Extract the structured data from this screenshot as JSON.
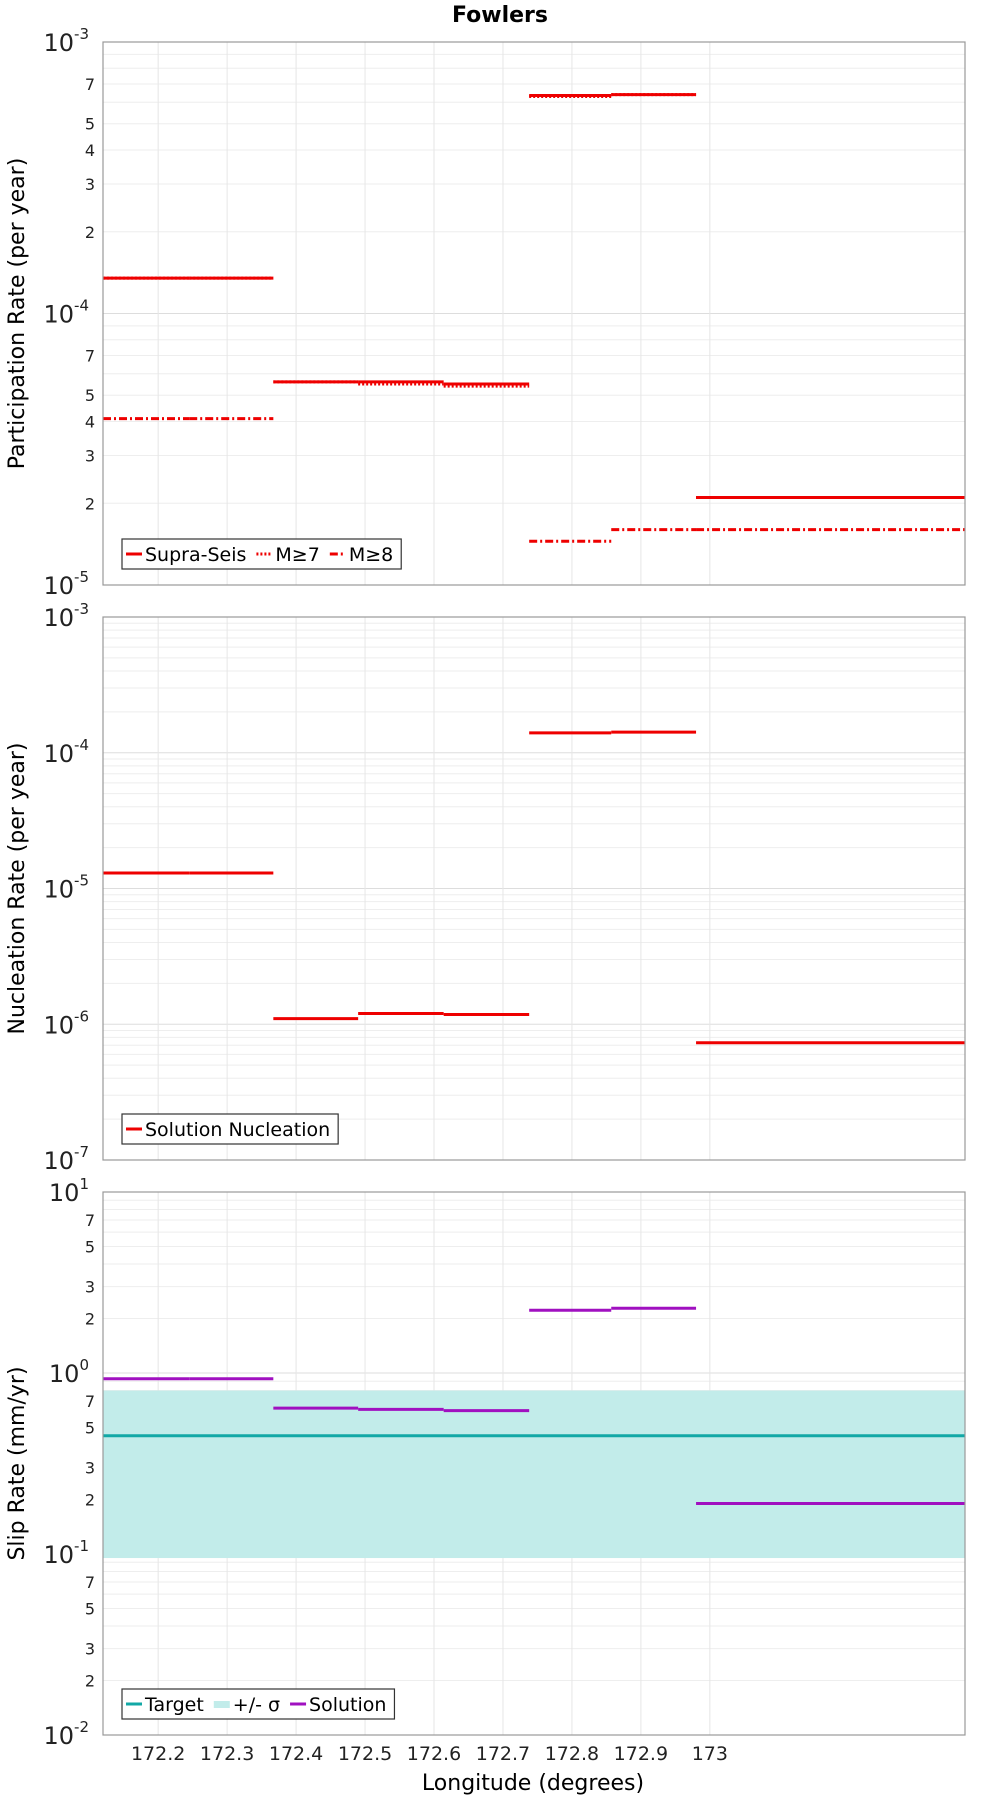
{
  "chart_data": {
    "title": "Fowlers",
    "xlabel": "Longitude (degrees)",
    "xlim": [
      172.12,
      173.37
    ],
    "xticks": [
      172.2,
      172.3,
      172.4,
      172.5,
      172.6,
      172.7,
      172.8,
      172.9,
      173
    ],
    "xtick_labels": [
      "172.2",
      "172.3",
      "172.4",
      "172.5",
      "172.6",
      "172.7",
      "172.8",
      "172.9",
      "173"
    ],
    "grid": true,
    "panels": [
      {
        "type": "line",
        "ylabel": "Participation Rate (per year)",
        "yscale": "log",
        "ylim": [
          1e-05,
          0.001
        ],
        "major_ticks": [
          {
            "value": 1e-05,
            "base": "10",
            "exp": "-5"
          },
          {
            "value": 0.0001,
            "base": "10",
            "exp": "-4"
          },
          {
            "value": 0.001,
            "base": "10",
            "exp": "-3"
          }
        ],
        "minor_labels": [
          "2",
          "3",
          "4",
          "5",
          "7"
        ],
        "legend": {
          "placement": "bottom-left",
          "entries": [
            {
              "label": "Supra-Seis",
              "color": "#ee0000",
              "style": "solid"
            },
            {
              "label": "M≥7",
              "color": "#ee0000",
              "style": "dotted"
            },
            {
              "label": "M≥8",
              "color": "#ee0000",
              "style": "dashdot"
            }
          ]
        },
        "series": [
          {
            "name": "Supra-Seis",
            "color": "#ee0000",
            "style": "solid",
            "segments": [
              {
                "x0": 172.12,
                "x1": 172.245,
                "y": 0.000135
              },
              {
                "x0": 172.245,
                "x1": 172.367,
                "y": 0.000135
              },
              {
                "x0": 172.367,
                "x1": 172.49,
                "y": 5.6e-05
              },
              {
                "x0": 172.49,
                "x1": 172.614,
                "y": 5.6e-05
              },
              {
                "x0": 172.614,
                "x1": 172.738,
                "y": 5.5e-05
              },
              {
                "x0": 172.738,
                "x1": 172.857,
                "y": 0.000635
              },
              {
                "x0": 172.857,
                "x1": 172.98,
                "y": 0.00064
              },
              {
                "x0": 172.98,
                "x1": 173.37,
                "y": 2.1e-05
              }
            ]
          },
          {
            "name": "M≥7",
            "color": "#ee0000",
            "style": "dotted",
            "segments": [
              {
                "x0": 172.12,
                "x1": 172.245,
                "y": 0.000135
              },
              {
                "x0": 172.245,
                "x1": 172.367,
                "y": 0.000135
              },
              {
                "x0": 172.367,
                "x1": 172.49,
                "y": 5.6e-05
              },
              {
                "x0": 172.49,
                "x1": 172.614,
                "y": 5.5e-05
              },
              {
                "x0": 172.614,
                "x1": 172.738,
                "y": 5.4e-05
              },
              {
                "x0": 172.738,
                "x1": 172.857,
                "y": 0.00063
              },
              {
                "x0": 172.857,
                "x1": 172.98,
                "y": 0.00064
              },
              {
                "x0": 172.98,
                "x1": 173.37,
                "y": 2.1e-05
              }
            ]
          },
          {
            "name": "M≥8",
            "color": "#ee0000",
            "style": "dashdot",
            "segments": [
              {
                "x0": 172.12,
                "x1": 172.245,
                "y": 4.1e-05
              },
              {
                "x0": 172.245,
                "x1": 172.367,
                "y": 4.1e-05
              },
              {
                "x0": 172.738,
                "x1": 172.857,
                "y": 1.45e-05
              },
              {
                "x0": 172.857,
                "x1": 172.98,
                "y": 1.6e-05
              },
              {
                "x0": 172.98,
                "x1": 173.37,
                "y": 1.6e-05
              }
            ]
          }
        ]
      },
      {
        "type": "line",
        "ylabel": "Nucleation Rate (per year)",
        "yscale": "log",
        "ylim": [
          1e-07,
          0.001
        ],
        "major_ticks": [
          {
            "value": 1e-07,
            "base": "10",
            "exp": "-7"
          },
          {
            "value": 1e-06,
            "base": "10",
            "exp": "-6"
          },
          {
            "value": 1e-05,
            "base": "10",
            "exp": "-5"
          },
          {
            "value": 0.0001,
            "base": "10",
            "exp": "-4"
          },
          {
            "value": 0.001,
            "base": "10",
            "exp": "-3"
          }
        ],
        "minor_labels": [],
        "legend": {
          "placement": "bottom-left",
          "entries": [
            {
              "label": "Solution Nucleation",
              "color": "#ee0000",
              "style": "solid"
            }
          ]
        },
        "series": [
          {
            "name": "Solution Nucleation",
            "color": "#ee0000",
            "style": "solid",
            "segments": [
              {
                "x0": 172.12,
                "x1": 172.245,
                "y": 1.3e-05
              },
              {
                "x0": 172.245,
                "x1": 172.367,
                "y": 1.3e-05
              },
              {
                "x0": 172.367,
                "x1": 172.49,
                "y": 1.1e-06
              },
              {
                "x0": 172.49,
                "x1": 172.614,
                "y": 1.2e-06
              },
              {
                "x0": 172.614,
                "x1": 172.738,
                "y": 1.18e-06
              },
              {
                "x0": 172.738,
                "x1": 172.857,
                "y": 0.00014
              },
              {
                "x0": 172.857,
                "x1": 172.98,
                "y": 0.000142
              },
              {
                "x0": 172.98,
                "x1": 173.37,
                "y": 7.3e-07
              }
            ]
          }
        ]
      },
      {
        "type": "line",
        "ylabel": "Slip Rate (mm/yr)",
        "yscale": "log",
        "ylim": [
          0.01,
          10
        ],
        "major_ticks": [
          {
            "value": 0.01,
            "base": "10",
            "exp": "-2"
          },
          {
            "value": 0.1,
            "base": "10",
            "exp": "-1"
          },
          {
            "value": 1,
            "base": "10",
            "exp": "0"
          },
          {
            "value": 10,
            "base": "10",
            "exp": "1"
          }
        ],
        "minor_labels": [
          "2",
          "3",
          "5",
          "7"
        ],
        "legend": {
          "placement": "bottom-left",
          "entries": [
            {
              "label": "Target",
              "color": "#12a8a6",
              "style": "solid"
            },
            {
              "label": "+/- σ",
              "color": "#c2ecea",
              "style": "band"
            },
            {
              "label": "Solution",
              "color": "#a010c0",
              "style": "solid"
            }
          ]
        },
        "band": {
          "name": "+/- σ",
          "color": "#c2ecea",
          "x0": 172.12,
          "x1": 173.37,
          "y0": 0.095,
          "y1": 0.8
        },
        "series": [
          {
            "name": "Target",
            "color": "#12a8a6",
            "style": "solid",
            "segments": [
              {
                "x0": 172.12,
                "x1": 173.37,
                "y": 0.45
              }
            ]
          },
          {
            "name": "Solution",
            "color": "#a010c0",
            "style": "solid",
            "segments": [
              {
                "x0": 172.12,
                "x1": 172.245,
                "y": 0.93
              },
              {
                "x0": 172.245,
                "x1": 172.367,
                "y": 0.93
              },
              {
                "x0": 172.367,
                "x1": 172.49,
                "y": 0.64
              },
              {
                "x0": 172.49,
                "x1": 172.614,
                "y": 0.63
              },
              {
                "x0": 172.614,
                "x1": 172.738,
                "y": 0.62
              },
              {
                "x0": 172.738,
                "x1": 172.857,
                "y": 2.22
              },
              {
                "x0": 172.857,
                "x1": 172.98,
                "y": 2.28
              },
              {
                "x0": 172.98,
                "x1": 173.37,
                "y": 0.19
              }
            ]
          }
        ]
      }
    ]
  }
}
